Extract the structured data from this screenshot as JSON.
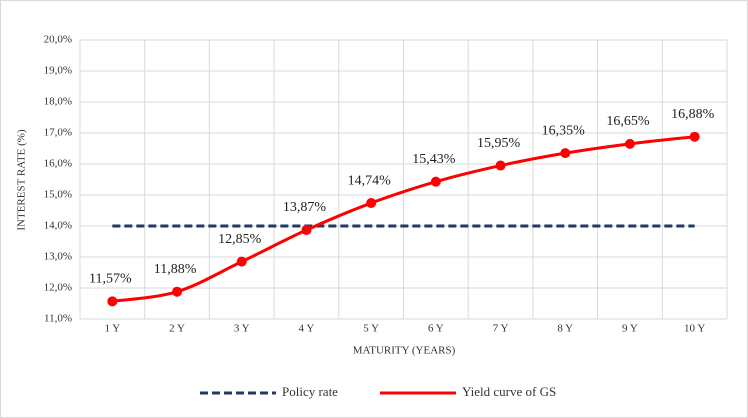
{
  "chart_data": {
    "type": "line",
    "ylabel": "INTEREST RATE (%)",
    "xlabel": "MATURITY (YEARS)",
    "categories": [
      "1 Y",
      "2 Y",
      "3 Y",
      "4 Y",
      "5 Y",
      "6 Y",
      "7 Y",
      "8 Y",
      "9 Y",
      "10 Y"
    ],
    "series": [
      {
        "name": "Policy rate",
        "color": "#203864",
        "dashed": true,
        "smooth": false,
        "markers": false,
        "values": [
          14,
          14,
          14,
          14,
          14,
          14,
          14,
          14,
          14,
          14
        ]
      },
      {
        "name": "Yield curve of GS",
        "color": "#ff0000",
        "dashed": false,
        "smooth": true,
        "markers": true,
        "values": [
          11.57,
          11.88,
          12.85,
          13.87,
          14.74,
          15.43,
          15.95,
          16.35,
          16.65,
          16.88
        ],
        "value_labels": [
          "11,57%",
          "11,88%",
          "12,85%",
          "13,87%",
          "14,74%",
          "15,43%",
          "15,95%",
          "16,35%",
          "16,65%",
          "16,88%"
        ]
      }
    ],
    "ylim": [
      11,
      20
    ],
    "yticks": [
      {
        "value": 11,
        "label": "11,0%"
      },
      {
        "value": 12,
        "label": "12,0%"
      },
      {
        "value": 13,
        "label": "13,0%"
      },
      {
        "value": 14,
        "label": "14,0%"
      },
      {
        "value": 15,
        "label": "15,0%"
      },
      {
        "value": 16,
        "label": "16,0%"
      },
      {
        "value": 17,
        "label": "17,0%"
      },
      {
        "value": 18,
        "label": "18,0%"
      },
      {
        "value": 19,
        "label": "19,0%"
      },
      {
        "value": 20,
        "label": "20,0%"
      }
    ],
    "grid": true,
    "legend": "bottom"
  }
}
